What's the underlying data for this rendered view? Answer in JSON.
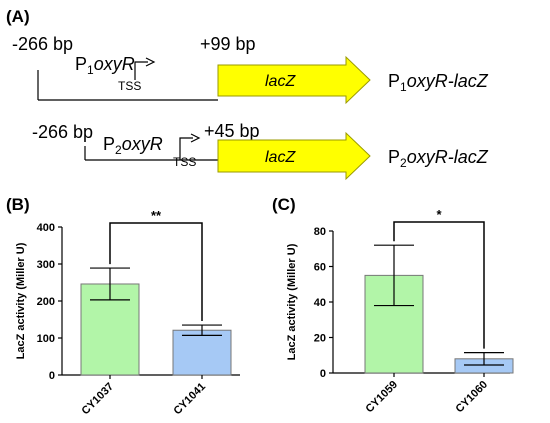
{
  "panel_a": {
    "label": "(A)",
    "construct1": {
      "start": "-266 bp",
      "promoter_base": "P",
      "promoter_sub": "1",
      "promoter_gene": "oxyR",
      "tss": "TSS",
      "end": "+99 bp",
      "reporter": "lacZ",
      "name_base": "P",
      "name_sub": "1",
      "name_gene": "oxyR-lacZ"
    },
    "construct2": {
      "start": "-266 bp",
      "promoter_base": "P",
      "promoter_sub": "2",
      "promoter_gene": "oxyR",
      "tss": "TSS",
      "end": "+45 bp",
      "reporter": "lacZ",
      "name_base": "P",
      "name_sub": "2",
      "name_gene": "oxyR-lacZ"
    },
    "colors": {
      "arrow_fill": "#ffff00",
      "arrow_stroke": "#9a9a00"
    }
  },
  "chart_data": [
    {
      "panel": "(B)",
      "type": "bar",
      "categories": [
        "CY1037",
        "CY1041"
      ],
      "values": [
        246,
        121
      ],
      "errors": [
        43,
        14
      ],
      "ylabel": "LacZ activity (Miller U)",
      "ylim": [
        0,
        400
      ],
      "yticks": [
        0,
        100,
        200,
        300,
        400
      ],
      "significance": "**",
      "colors": [
        "#b2f5a8",
        "#a6c9f5"
      ]
    },
    {
      "panel": "(C)",
      "type": "bar",
      "categories": [
        "CY1059",
        "CY1060"
      ],
      "values": [
        55,
        8
      ],
      "errors": [
        17,
        3.5
      ],
      "ylabel": "LacZ activity (Miller U)",
      "ylim": [
        0,
        80
      ],
      "yticks": [
        0,
        20,
        40,
        60,
        80
      ],
      "significance": "*",
      "colors": [
        "#b2f5a8",
        "#a6c9f5"
      ]
    }
  ]
}
